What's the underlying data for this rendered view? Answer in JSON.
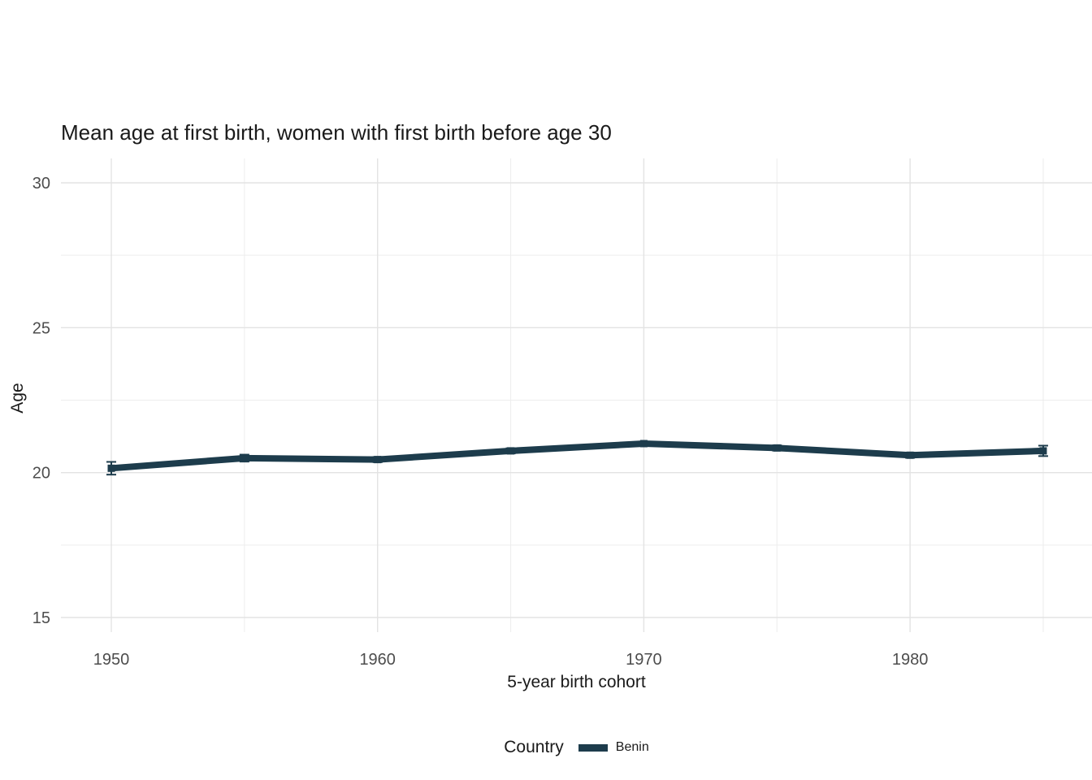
{
  "chart_data": {
    "type": "line",
    "title": "Mean age at first birth, women with first birth before age 30",
    "xlabel": "5-year birth cohort",
    "ylabel": "Age",
    "x": [
      1950,
      1955,
      1960,
      1965,
      1970,
      1975,
      1980,
      1985
    ],
    "series": [
      {
        "name": "Benin",
        "values": [
          20.15,
          20.5,
          20.45,
          20.75,
          21.0,
          20.85,
          20.6,
          20.75
        ],
        "errors": [
          0.22,
          0.12,
          0.09,
          0.09,
          0.07,
          0.09,
          0.09,
          0.18
        ],
        "color": "#1d3c4c"
      }
    ],
    "x_ticks": [
      1950,
      1960,
      1970,
      1980
    ],
    "x_minor_ticks": [
      1955,
      1965,
      1975,
      1985
    ],
    "y_ticks": [
      15,
      20,
      25,
      30
    ],
    "y_minor_ticks": [
      17.5,
      22.5,
      27.5
    ],
    "xlim": [
      1948,
      1986.8
    ],
    "ylim": [
      14.5,
      30.8
    ],
    "grid": true,
    "legend": {
      "title": "Country",
      "position": "bottom",
      "entries": [
        "Benin"
      ]
    },
    "colors": {
      "grid_major": "#e3e3e3",
      "grid_minor": "#ededed",
      "tick_label": "#4d4d4d",
      "text": "#1a1a1a"
    }
  }
}
